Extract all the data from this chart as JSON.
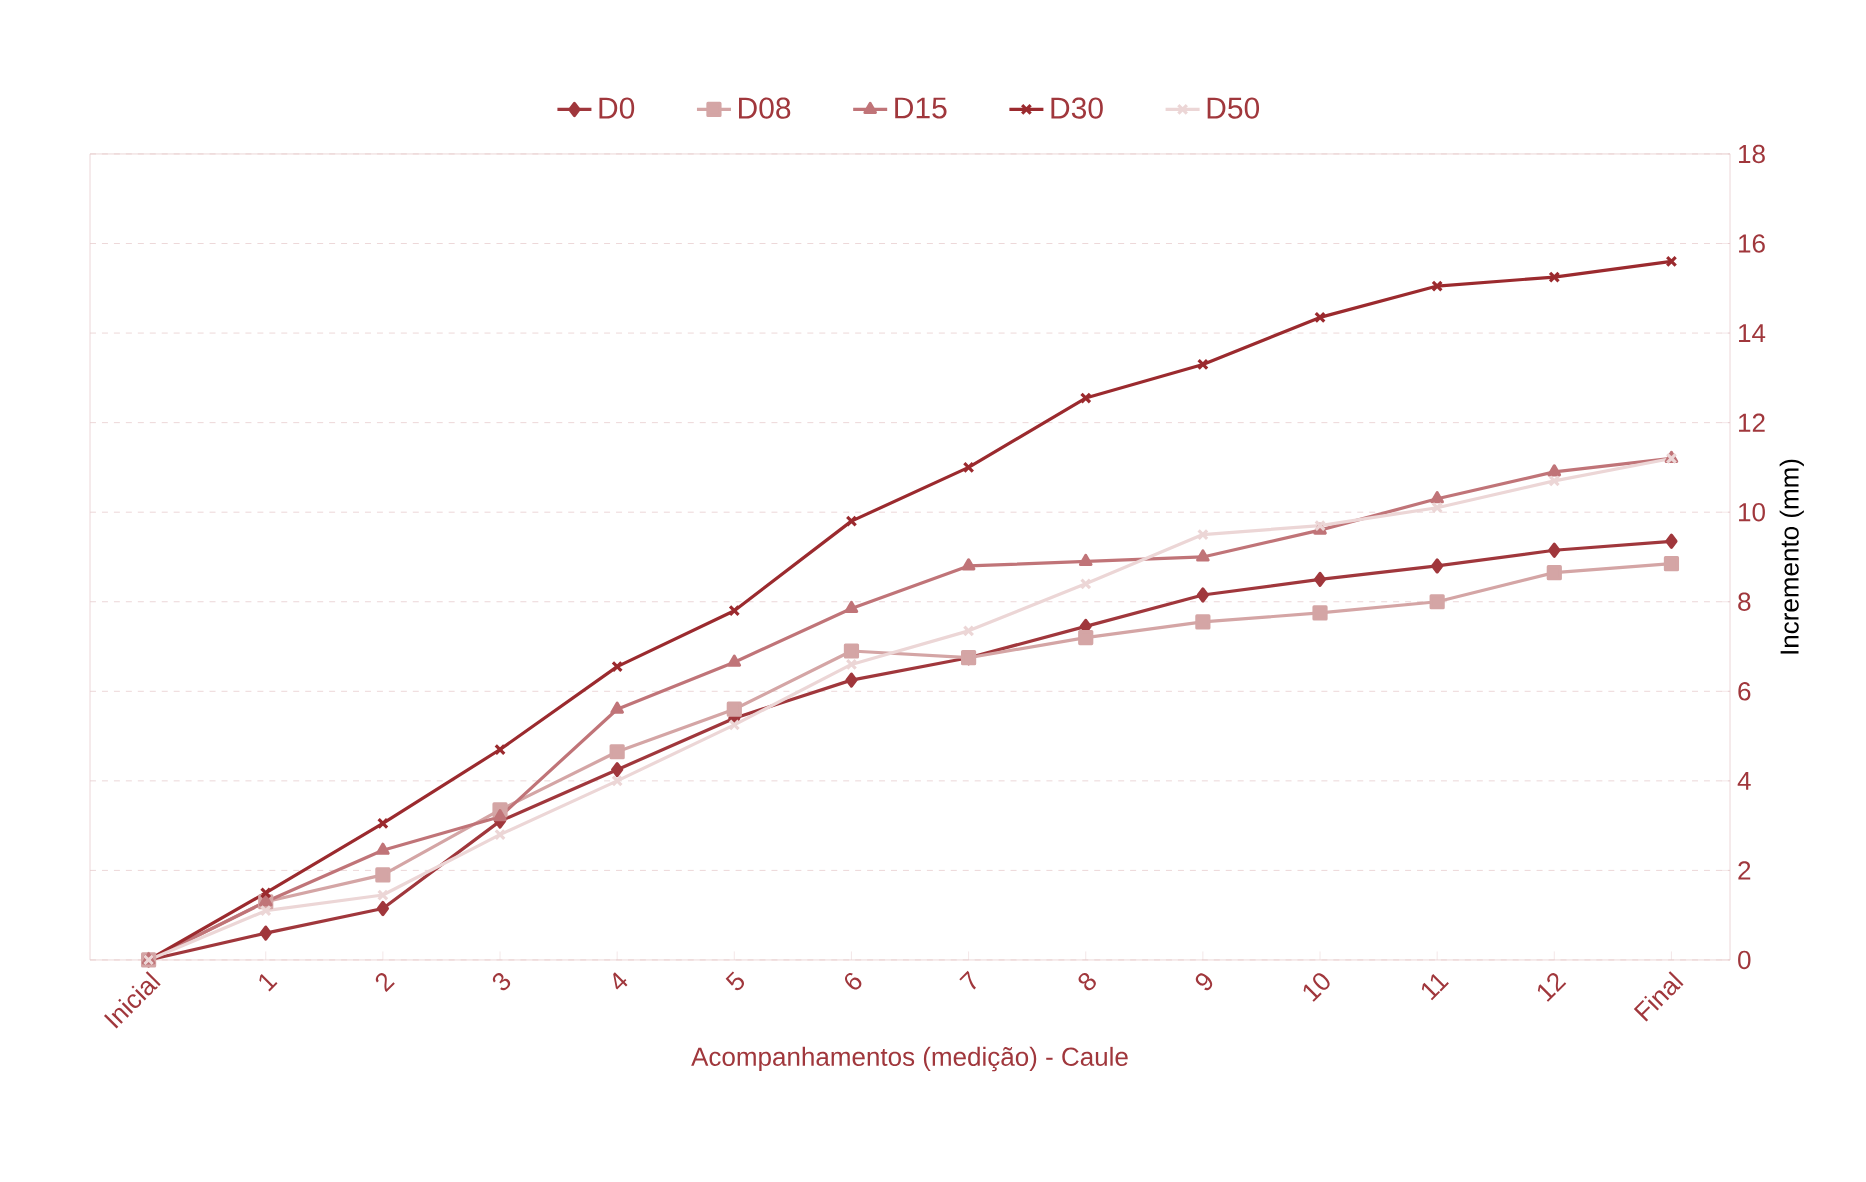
{
  "chart_data": {
    "type": "line",
    "xlabel": "Acompanhamentos (medição) - Caule",
    "ylabel": "Incremento (mm)",
    "categories": [
      "Inicial",
      "1",
      "2",
      "3",
      "4",
      "5",
      "6",
      "7",
      "8",
      "9",
      "10",
      "11",
      "12",
      "Final"
    ],
    "ylim": [
      0,
      18
    ],
    "yticks": [
      0,
      2,
      4,
      6,
      8,
      10,
      12,
      14,
      16,
      18
    ],
    "grid": "y",
    "legend": "top",
    "line_style": "solid",
    "series": [
      {
        "name": "D0",
        "color": "#a0373c",
        "marker": "diamond",
        "values": [
          0,
          0.6,
          1.15,
          3.1,
          4.25,
          5.4,
          6.25,
          6.75,
          7.45,
          8.15,
          8.5,
          8.8,
          9.15,
          9.35
        ]
      },
      {
        "name": "D08",
        "color": "#d4a5a5",
        "marker": "square",
        "values": [
          0,
          1.3,
          1.9,
          3.35,
          4.65,
          5.6,
          6.9,
          6.75,
          7.2,
          7.55,
          7.75,
          8.0,
          8.65,
          8.85
        ]
      },
      {
        "name": "D15",
        "color": "#c07478",
        "marker": "triangle",
        "values": [
          0,
          1.3,
          2.45,
          3.2,
          5.6,
          6.65,
          7.85,
          8.8,
          8.9,
          9.0,
          9.6,
          10.3,
          10.9,
          11.2
        ]
      },
      {
        "name": "D30",
        "color": "#9b2a2e",
        "marker": "cross",
        "values": [
          0,
          1.5,
          3.05,
          4.7,
          6.55,
          7.8,
          9.8,
          11.0,
          12.55,
          13.3,
          14.35,
          15.05,
          15.25,
          15.6
        ]
      },
      {
        "name": "D50",
        "color": "#ecd6d6",
        "marker": "cross",
        "values": [
          0,
          1.1,
          1.45,
          2.8,
          4.0,
          5.25,
          6.6,
          7.35,
          8.4,
          9.5,
          9.7,
          10.1,
          10.7,
          11.2
        ]
      }
    ]
  }
}
